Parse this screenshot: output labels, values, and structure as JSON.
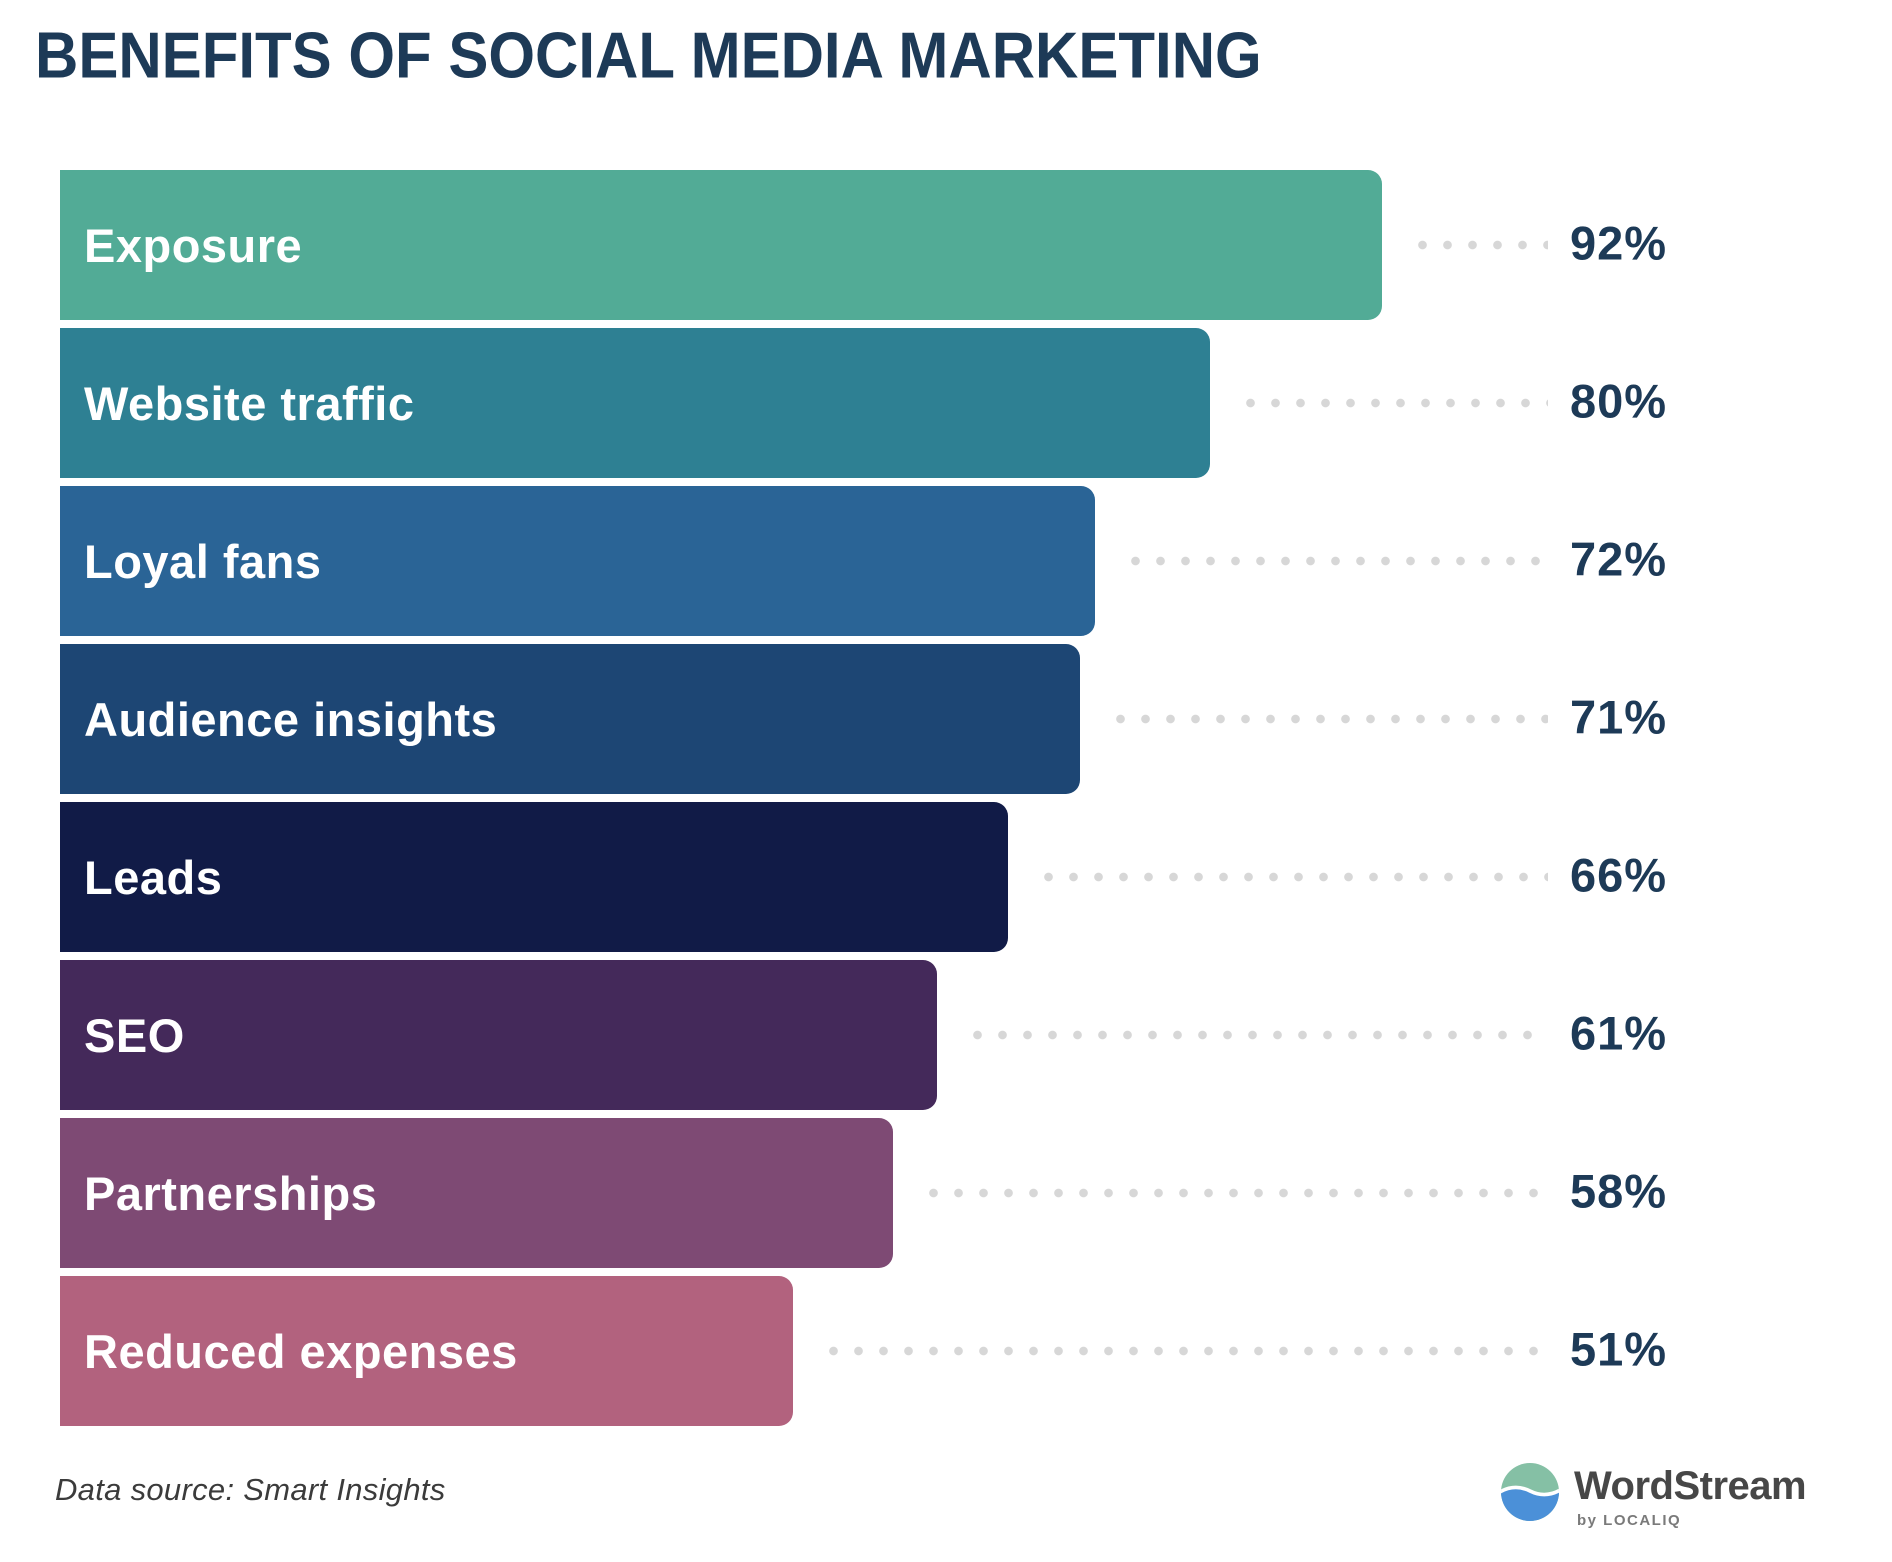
{
  "title": "BENEFITS OF SOCIAL MEDIA MARKETING",
  "footer": {
    "source_note": "Data source: Smart Insights"
  },
  "brand": {
    "name": "WordStream",
    "sub": "by LOCALIQ",
    "icon": "wordstream-wave-circle-icon",
    "icon_colors": {
      "top": "#85c0a5",
      "bottom": "#4b90d8",
      "wave": "#ffffff"
    }
  },
  "colors": {
    "title_text": "#1d3a57",
    "value_text": "#1d3a57",
    "bar_label_text": "#ffffff",
    "leader_dots": "#d7d7d7",
    "background": "#ffffff"
  },
  "chart_data": {
    "type": "bar",
    "orientation": "horizontal",
    "title": "BENEFITS OF SOCIAL MEDIA MARKETING",
    "xlabel": "",
    "ylabel": "",
    "xlim": [
      0,
      100
    ],
    "unit": "%",
    "grid": false,
    "legend": false,
    "leader_dots": true,
    "categories": [
      "Exposure",
      "Website traffic",
      "Loyal fans",
      "Audience insights",
      "Leads",
      "SEO",
      "Partnerships",
      "Reduced expenses"
    ],
    "values": [
      92,
      80,
      72,
      71,
      66,
      61,
      58,
      51
    ],
    "value_labels": [
      "92%",
      "80%",
      "72%",
      "71%",
      "66%",
      "61%",
      "58%",
      "51%"
    ],
    "bar_colors": [
      "#52ab96",
      "#2e8093",
      "#2a6496",
      "#1d4674",
      "#111b47",
      "#44295a",
      "#7e4a74",
      "#b2627e"
    ]
  }
}
